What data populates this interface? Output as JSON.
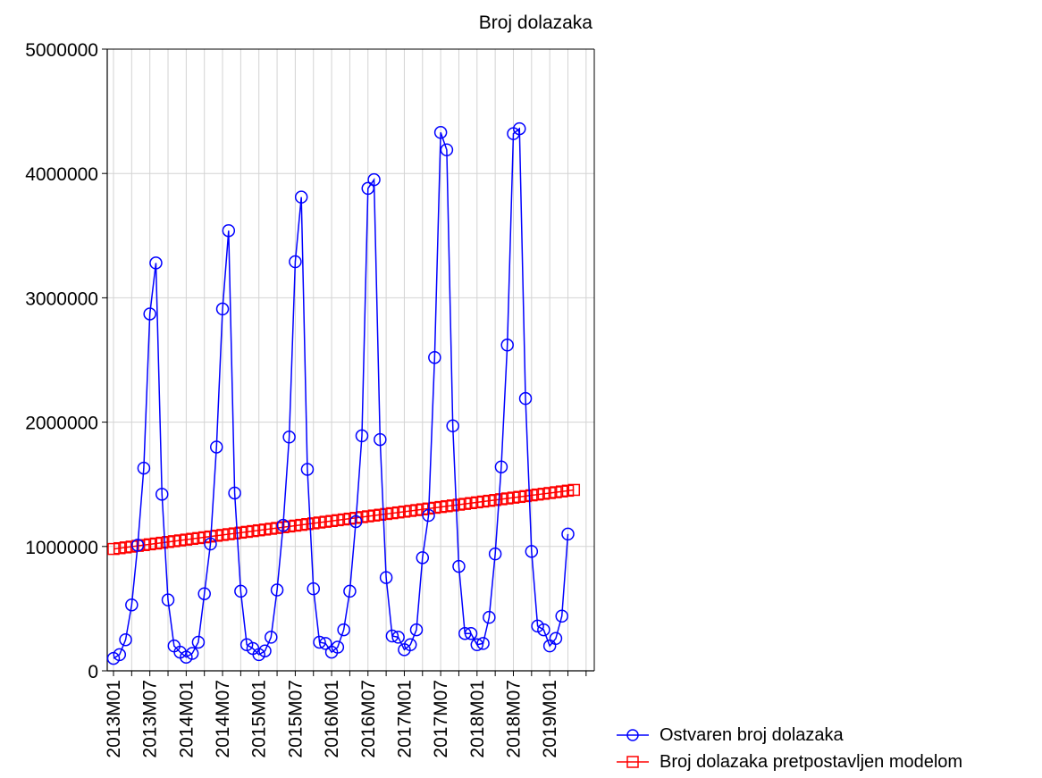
{
  "chart_data": {
    "type": "line",
    "title": "Broj dolazaka",
    "xlabel": "",
    "ylabel": "",
    "ylim": [
      0,
      5000000
    ],
    "yticks": [
      0,
      1000000,
      2000000,
      3000000,
      4000000,
      5000000
    ],
    "ytick_labels": [
      "0",
      "1000000",
      "2000000",
      "3000000",
      "4000000",
      "5000000"
    ],
    "xtick_labels": [
      "2013M01",
      "2013M07",
      "2014M01",
      "2014M07",
      "2015M01",
      "2015M07",
      "2016M01",
      "2016M07",
      "2017M01",
      "2017M07",
      "2018M01",
      "2018M07",
      "2019M01"
    ],
    "grid": true,
    "legend_position": "bottom-right",
    "x": [
      "2013M01",
      "2013M02",
      "2013M03",
      "2013M04",
      "2013M05",
      "2013M06",
      "2013M07",
      "2013M08",
      "2013M09",
      "2013M10",
      "2013M11",
      "2013M12",
      "2014M01",
      "2014M02",
      "2014M03",
      "2014M04",
      "2014M05",
      "2014M06",
      "2014M07",
      "2014M08",
      "2014M09",
      "2014M10",
      "2014M11",
      "2014M12",
      "2015M01",
      "2015M02",
      "2015M03",
      "2015M04",
      "2015M05",
      "2015M06",
      "2015M07",
      "2015M08",
      "2015M09",
      "2015M10",
      "2015M11",
      "2015M12",
      "2016M01",
      "2016M02",
      "2016M03",
      "2016M04",
      "2016M05",
      "2016M06",
      "2016M07",
      "2016M08",
      "2016M09",
      "2016M10",
      "2016M11",
      "2016M12",
      "2017M01",
      "2017M02",
      "2017M03",
      "2017M04",
      "2017M05",
      "2017M06",
      "2017M07",
      "2017M08",
      "2017M09",
      "2017M10",
      "2017M11",
      "2017M12",
      "2018M01",
      "2018M02",
      "2018M03",
      "2018M04",
      "2018M05",
      "2018M06",
      "2018M07",
      "2018M08",
      "2018M09",
      "2018M10",
      "2018M11",
      "2018M12",
      "2019M01",
      "2019M02",
      "2019M03",
      "2019M04",
      "2019M05"
    ],
    "series": [
      {
        "name": "Ostvaren broj dolazaka",
        "color": "#0000ff",
        "marker": "circle",
        "values": [
          100000,
          130000,
          250000,
          530000,
          1010000,
          1630000,
          2870000,
          3280000,
          1420000,
          570000,
          200000,
          150000,
          110000,
          140000,
          230000,
          620000,
          1020000,
          1800000,
          2910000,
          3540000,
          1430000,
          640000,
          210000,
          180000,
          130000,
          160000,
          270000,
          650000,
          1170000,
          1880000,
          3290000,
          3810000,
          1620000,
          660000,
          230000,
          220000,
          150000,
          190000,
          330000,
          640000,
          1200000,
          1890000,
          3880000,
          3950000,
          1860000,
          750000,
          280000,
          270000,
          170000,
          210000,
          330000,
          910000,
          1250000,
          2520000,
          4330000,
          4190000,
          1970000,
          840000,
          300000,
          300000,
          210000,
          220000,
          430000,
          940000,
          1640000,
          2620000,
          4320000,
          4360000,
          2190000,
          960000,
          360000,
          330000,
          200000,
          260000,
          440000,
          1100000,
          null
        ]
      },
      {
        "name": "Broj dolazaka pretpostavljen modelom",
        "color": "#ff0000",
        "marker": "square",
        "start": 980000,
        "end": 1455000
      }
    ]
  },
  "legend": {
    "items": [
      {
        "label": "Ostvaren broj dolazaka",
        "color": "#0000ff",
        "marker": "circle"
      },
      {
        "label": "Broj dolazaka pretpostavljen modelom",
        "color": "#ff0000",
        "marker": "square"
      }
    ]
  }
}
